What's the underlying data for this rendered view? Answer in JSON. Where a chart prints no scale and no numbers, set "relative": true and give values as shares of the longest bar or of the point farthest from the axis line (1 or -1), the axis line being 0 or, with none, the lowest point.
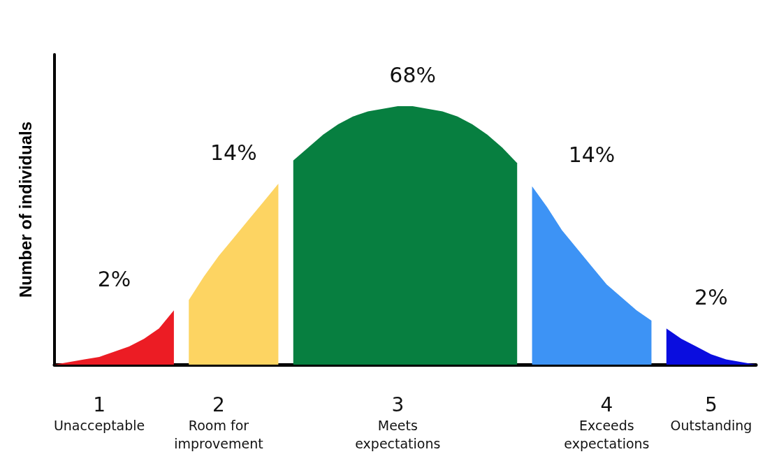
{
  "chart_data": {
    "type": "area",
    "relative": true,
    "ylabel": "Number of individuals",
    "categories": [
      null,
      null,
      null,
      "1\nUnacceptable",
      null,
      null,
      null,
      null,
      null,
      null,
      null,
      "2\nRoom for\nimprovement",
      null,
      null,
      null,
      null,
      null,
      null,
      null,
      null,
      null,
      null,
      null,
      "3\nMeets\nexpectations",
      null,
      null,
      null,
      null,
      null,
      null,
      null,
      null,
      null,
      null,
      null,
      null,
      null,
      "4\nExceeds\nexpectations",
      null,
      null,
      null,
      null,
      null,
      null,
      "5\nOutstanding",
      null,
      null,
      null
    ],
    "grid": false,
    "series": [
      {
        "color": "#ec1c24",
        "values": [
          0,
          0.01,
          0.02,
          0.03,
          0.05,
          0.07,
          0.1,
          0.14,
          0.21,
          null,
          null,
          null,
          null,
          null,
          null,
          null,
          null,
          null,
          null,
          null,
          null,
          null,
          null,
          null,
          null,
          null,
          null,
          null,
          null,
          null,
          null,
          null,
          null,
          null,
          null,
          null,
          null,
          null,
          null,
          null,
          null,
          null,
          null,
          null,
          null,
          null,
          null,
          null
        ]
      },
      {
        "color": "#fdd462",
        "values": [
          null,
          null,
          null,
          null,
          null,
          null,
          null,
          null,
          null,
          0.25,
          0.34,
          0.42,
          0.49,
          0.56,
          0.63,
          0.7,
          null,
          null,
          null,
          null,
          null,
          null,
          null,
          null,
          null,
          null,
          null,
          null,
          null,
          null,
          null,
          null,
          null,
          null,
          null,
          null,
          null,
          null,
          null,
          null,
          null,
          null,
          null,
          null,
          null,
          null,
          null,
          null
        ]
      },
      {
        "color": "#077f40",
        "values": [
          null,
          null,
          null,
          null,
          null,
          null,
          null,
          null,
          null,
          null,
          null,
          null,
          null,
          null,
          null,
          null,
          0.79,
          0.84,
          0.89,
          0.93,
          0.96,
          0.98,
          0.99,
          1,
          1,
          0.99,
          0.98,
          0.96,
          0.93,
          0.89,
          0.84,
          0.78,
          null,
          null,
          null,
          null,
          null,
          null,
          null,
          null,
          null,
          null,
          null,
          null,
          null,
          null,
          null,
          null
        ]
      },
      {
        "color": "#3d93f5",
        "values": [
          null,
          null,
          null,
          null,
          null,
          null,
          null,
          null,
          null,
          null,
          null,
          null,
          null,
          null,
          null,
          null,
          null,
          null,
          null,
          null,
          null,
          null,
          null,
          null,
          null,
          null,
          null,
          null,
          null,
          null,
          null,
          null,
          0.69,
          0.61,
          0.52,
          0.45,
          0.38,
          0.31,
          0.26,
          0.21,
          0.17,
          null,
          null,
          null,
          null,
          null,
          null,
          null
        ]
      },
      {
        "color": "#0a0ddf",
        "values": [
          null,
          null,
          null,
          null,
          null,
          null,
          null,
          null,
          null,
          null,
          null,
          null,
          null,
          null,
          null,
          null,
          null,
          null,
          null,
          null,
          null,
          null,
          null,
          null,
          null,
          null,
          null,
          null,
          null,
          null,
          null,
          null,
          null,
          null,
          null,
          null,
          null,
          null,
          null,
          null,
          null,
          0.14,
          0.1,
          0.07,
          0.04,
          0.02,
          0.01,
          0
        ]
      }
    ],
    "annotations": [
      "2%",
      "14%",
      "68%",
      "14%",
      "2%"
    ]
  }
}
